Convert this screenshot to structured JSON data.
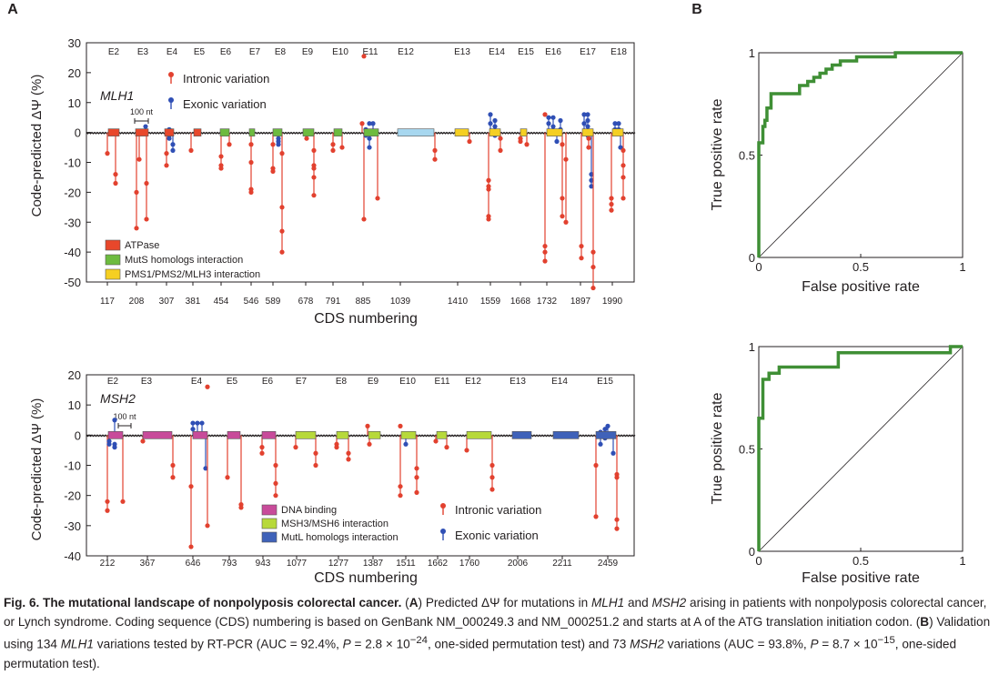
{
  "panels": {
    "a": "A",
    "b": "B"
  },
  "caption": {
    "lead": "Fig. 6. The mutational landscape of nonpolyposis colorectal cancer.",
    "p1": " (",
    "a": "A",
    "p2": ") Predicted ΔΨ for mutations in ",
    "g1": "MLH1",
    "p3": " and ",
    "g2": "MSH2",
    "p4": " arising in patients with nonpolyposis colorectal cancer, or Lynch syndrome. Coding sequence (CDS) numbering is based on GenBank NM_000249.3 and NM_000251.2 and starts at A of the ATG translation initiation codon. (",
    "b": "B",
    "p5": ") Validation using 134 ",
    "g3": "MLH1",
    "p6": " variations tested by RT-PCR (AUC = 92.4%, ",
    "pv1": "P",
    "p7": " = 2.8 × 10",
    "e1": "−24",
    "p8": ", one-sided permutation test) and 73 ",
    "g4": "MSH2",
    "p9": " variations (AUC = 93.8%, ",
    "pv2": "P",
    "p10": " = 8.7 × 10",
    "e2": "−15",
    "p11": ", one-sided permutation test)."
  },
  "colors": {
    "intronic": "#e2412f",
    "exonic": "#2f4fb5",
    "atpase": "#e8472b",
    "muts": "#6dbb3f",
    "pms": "#f5cf22",
    "dna": "#c84b9a",
    "msh3": "#b7d93a",
    "mutl": "#3f62b9",
    "plain_exon": "#a7d7ef",
    "roc": "#3f8f35"
  },
  "chart_data": [
    {
      "id": "mlh1",
      "type": "scatter",
      "gene": "MLH1",
      "ylabel": "Code-predicted ΔΨ (%)",
      "xlabel": "CDS numbering",
      "ylim": [
        -50,
        30
      ],
      "yticks": [
        30,
        20,
        10,
        0,
        -10,
        -20,
        -30,
        -40,
        -50
      ],
      "scale_bar": "100 nt",
      "exon_labels": [
        "E2",
        "E3",
        "E4",
        "E5",
        "E6",
        "E7",
        "E8",
        "E9",
        "E10",
        "E11",
        "E12",
        "E13",
        "E14",
        "E15",
        "E16",
        "E17",
        "E18"
      ],
      "cds_ticks": [
        "117",
        "208",
        "307",
        "381",
        "454",
        "546",
        "589",
        "678",
        "791",
        "885",
        "1039",
        "1410",
        "1559",
        "1668",
        "1732",
        "1897",
        "1990"
      ],
      "legend_variations": [
        "Intronic variation",
        "Exonic variation"
      ],
      "legend_domains": [
        "ATPase",
        "MutS homologs interaction",
        "PMS1/PMS2/MLH3 interaction"
      ],
      "exons": [
        {
          "x0": 119,
          "x1": 131,
          "d": "atpase"
        },
        {
          "x0": 149,
          "x1": 163,
          "d": "atpase"
        },
        {
          "x0": 181,
          "x1": 191,
          "d": "atpase"
        },
        {
          "x0": 213,
          "x1": 221,
          "d": "atpase"
        },
        {
          "x0": 242,
          "x1": 252,
          "d": "muts"
        },
        {
          "x0": 274,
          "x1": 280,
          "d": "muts"
        },
        {
          "x0": 300,
          "x1": 310,
          "d": "muts"
        },
        {
          "x0": 333,
          "x1": 345,
          "d": "muts"
        },
        {
          "x0": 367,
          "x1": 376,
          "d": "muts"
        },
        {
          "x0": 400,
          "x1": 416,
          "d": "muts"
        },
        {
          "x0": 437,
          "x1": 477,
          "d": "plain_exon"
        },
        {
          "x0": 500,
          "x1": 515,
          "d": "pms"
        },
        {
          "x0": 538,
          "x1": 550,
          "d": "pms"
        },
        {
          "x0": 572,
          "x1": 579,
          "d": "pms"
        },
        {
          "x0": 601,
          "x1": 618,
          "d": "pms"
        },
        {
          "x0": 640,
          "x1": 652,
          "d": "pms"
        },
        {
          "x0": 673,
          "x1": 685,
          "d": "pms"
        }
      ],
      "stems": [
        {
          "x": 118,
          "v": [
            -7
          ],
          "t": "i"
        },
        {
          "x": 127,
          "v": [
            -14,
            -17
          ],
          "t": "i"
        },
        {
          "x": 150,
          "v": [
            -20,
            -32
          ],
          "t": "i"
        },
        {
          "x": 153,
          "v": [
            -9
          ],
          "t": "i"
        },
        {
          "x": 161,
          "v": [
            -17,
            -29
          ],
          "t": "i"
        },
        {
          "x": 160,
          "v": [
            2
          ],
          "t": "e"
        },
        {
          "x": 183,
          "v": [
            -7,
            -11
          ],
          "t": "i"
        },
        {
          "x": 186,
          "v": [
            1,
            -1,
            -2
          ],
          "t": "e"
        },
        {
          "x": 190,
          "v": [
            -4,
            -6
          ],
          "t": "e"
        },
        {
          "x": 210,
          "v": [
            -6
          ],
          "t": "i"
        },
        {
          "x": 243,
          "v": [
            -8,
            -11,
            -12
          ],
          "t": "i"
        },
        {
          "x": 252,
          "v": [
            -4
          ],
          "t": "i"
        },
        {
          "x": 276,
          "v": [
            -4,
            -10,
            -19,
            -20
          ],
          "t": "i"
        },
        {
          "x": 300,
          "v": [
            -4,
            -12,
            -13
          ],
          "t": "i"
        },
        {
          "x": 306,
          "v": [
            -2,
            -3,
            -4
          ],
          "t": "e"
        },
        {
          "x": 310,
          "v": [
            -7,
            -25,
            -33,
            -40
          ],
          "t": "i"
        },
        {
          "x": 337,
          "v": [
            -2
          ],
          "t": "i"
        },
        {
          "x": 345,
          "v": [
            -6,
            -11,
            -12,
            -15,
            -21
          ],
          "t": "i"
        },
        {
          "x": 366,
          "v": [
            -4,
            -6
          ],
          "t": "i"
        },
        {
          "x": 376,
          "v": [
            -5
          ],
          "t": "i"
        },
        {
          "x": 398,
          "v": [
            3
          ],
          "t": "i"
        },
        {
          "x": 400,
          "v": [
            25.5,
            -29
          ],
          "t": "i"
        },
        {
          "x": 402,
          "v": [
            1,
            -1
          ],
          "t": "e"
        },
        {
          "x": 406,
          "v": [
            3,
            -2,
            -5
          ],
          "t": "e"
        },
        {
          "x": 410,
          "v": [
            3
          ],
          "t": "e"
        },
        {
          "x": 415,
          "v": [
            -22
          ],
          "t": "i"
        },
        {
          "x": 478,
          "v": [
            -6,
            -9
          ],
          "t": "i"
        },
        {
          "x": 516,
          "v": [
            -3
          ],
          "t": "i"
        },
        {
          "x": 537,
          "v": [
            -16,
            -18,
            -19,
            -28,
            -29
          ],
          "t": "i"
        },
        {
          "x": 539,
          "v": [
            6,
            3
          ],
          "t": "e"
        },
        {
          "x": 544,
          "v": [
            4,
            2,
            -1
          ],
          "t": "e"
        },
        {
          "x": 550,
          "v": [
            -2,
            -6
          ],
          "t": "i"
        },
        {
          "x": 572,
          "v": [
            -2,
            -3
          ],
          "t": "i"
        },
        {
          "x": 579,
          "v": [
            -4
          ],
          "t": "i"
        },
        {
          "x": 599,
          "v": [
            6,
            -38,
            -40,
            -43
          ],
          "t": "i"
        },
        {
          "x": 603,
          "v": [
            5,
            3
          ],
          "t": "e"
        },
        {
          "x": 608,
          "v": [
            5,
            2
          ],
          "t": "e"
        },
        {
          "x": 612,
          "v": [
            -3
          ],
          "t": "e"
        },
        {
          "x": 618,
          "v": [
            -4,
            -22,
            -28
          ],
          "t": "i"
        },
        {
          "x": 622,
          "v": [
            -9,
            -30
          ],
          "t": "i"
        },
        {
          "x": 616,
          "v": [
            4,
            1
          ],
          "t": "e"
        },
        {
          "x": 642,
          "v": [
            6,
            3
          ],
          "t": "e"
        },
        {
          "x": 646,
          "v": [
            6,
            4,
            2,
            -1
          ],
          "t": "e"
        },
        {
          "x": 639,
          "v": [
            -38,
            -42
          ],
          "t": "i"
        },
        {
          "x": 650,
          "v": [
            -14,
            -16,
            -18
          ],
          "t": "e"
        },
        {
          "x": 652,
          "v": [
            -40,
            -45,
            -52
          ],
          "t": "i"
        },
        {
          "x": 647,
          "v": [
            -2,
            -5
          ],
          "t": "i"
        },
        {
          "x": 672,
          "v": [
            -22,
            -24,
            -26
          ],
          "t": "i"
        },
        {
          "x": 676,
          "v": [
            3,
            1
          ],
          "t": "e"
        },
        {
          "x": 680,
          "v": [
            3,
            1
          ],
          "t": "e"
        },
        {
          "x": 682,
          "v": [
            -5
          ],
          "t": "e"
        },
        {
          "x": 685,
          "v": [
            -6,
            -11,
            -15,
            -22
          ],
          "t": "i"
        }
      ]
    },
    {
      "id": "msh2",
      "type": "scatter",
      "gene": "MSH2",
      "ylabel": "Code-predicted ΔΨ (%)",
      "xlabel": "CDS numbering",
      "ylim": [
        -40,
        20
      ],
      "yticks": [
        20,
        10,
        0,
        -10,
        -20,
        -30,
        -40
      ],
      "scale_bar": "100 nt",
      "exon_labels": [
        "E2",
        "E3",
        "E4",
        "E5",
        "E6",
        "E7",
        "E8",
        "E9",
        "E10",
        "E11",
        "E12",
        "E13",
        "E14",
        "E15"
      ],
      "cds_ticks": [
        "212",
        "367",
        "646",
        "793",
        "943",
        "1077",
        "1277",
        "1387",
        "1511",
        "1662",
        "1760",
        "2006",
        "2211",
        "2459"
      ],
      "legend_domains": [
        "DNA binding",
        "MSH3/MSH6 interaction",
        "MutL homologs interaction"
      ],
      "legend_variations": [
        "Intronic variation",
        "Exonic variation"
      ],
      "exons": [
        {
          "x0": 119,
          "x1": 135,
          "d": "dna"
        },
        {
          "x0": 157,
          "x1": 189,
          "d": "dna"
        },
        {
          "x0": 212,
          "x1": 228,
          "d": "dna"
        },
        {
          "x0": 250,
          "x1": 264,
          "d": "dna"
        },
        {
          "x0": 288,
          "x1": 303,
          "d": "dna"
        },
        {
          "x0": 325,
          "x1": 347,
          "d": "msh3"
        },
        {
          "x0": 370,
          "x1": 383,
          "d": "msh3"
        },
        {
          "x0": 405,
          "x1": 418,
          "d": "msh3"
        },
        {
          "x0": 441,
          "x1": 457,
          "d": "msh3"
        },
        {
          "x0": 480,
          "x1": 491,
          "d": "msh3"
        },
        {
          "x0": 513,
          "x1": 540,
          "d": "msh3"
        },
        {
          "x0": 563,
          "x1": 584,
          "d": "mutl"
        },
        {
          "x0": 608,
          "x1": 636,
          "d": "mutl"
        },
        {
          "x0": 655,
          "x1": 677,
          "d": "mutl"
        }
      ],
      "stems": [
        {
          "x": 118,
          "v": [
            -22,
            -25
          ],
          "t": "i"
        },
        {
          "x": 120,
          "v": [
            -2,
            -3
          ],
          "t": "e"
        },
        {
          "x": 126,
          "v": [
            5,
            -3,
            -4
          ],
          "t": "e"
        },
        {
          "x": 135,
          "v": [
            -22
          ],
          "t": "i"
        },
        {
          "x": 157,
          "v": [
            -2
          ],
          "t": "i"
        },
        {
          "x": 190,
          "v": [
            -10,
            -14
          ],
          "t": "i"
        },
        {
          "x": 210,
          "v": [
            -17,
            -37
          ],
          "t": "i"
        },
        {
          "x": 212,
          "v": [
            4,
            2
          ],
          "t": "e"
        },
        {
          "x": 217,
          "v": [
            4
          ],
          "t": "e"
        },
        {
          "x": 222,
          "v": [
            4
          ],
          "t": "e"
        },
        {
          "x": 226,
          "v": [
            -11
          ],
          "t": "e"
        },
        {
          "x": 228,
          "v": [
            16,
            -30
          ],
          "t": "i"
        },
        {
          "x": 250,
          "v": [
            -14
          ],
          "t": "i"
        },
        {
          "x": 265,
          "v": [
            -23,
            -24
          ],
          "t": "i"
        },
        {
          "x": 288,
          "v": [
            -4,
            -6
          ],
          "t": "i"
        },
        {
          "x": 303,
          "v": [
            -10,
            -16,
            -20
          ],
          "t": "i"
        },
        {
          "x": 325,
          "v": [
            -4
          ],
          "t": "i"
        },
        {
          "x": 347,
          "v": [
            -6,
            -10
          ],
          "t": "i"
        },
        {
          "x": 370,
          "v": [
            -3,
            -4
          ],
          "t": "i"
        },
        {
          "x": 383,
          "v": [
            -6,
            -8
          ],
          "t": "i"
        },
        {
          "x": 404,
          "v": [
            3
          ],
          "t": "i"
        },
        {
          "x": 406,
          "v": [
            -3
          ],
          "t": "i"
        },
        {
          "x": 440,
          "v": [
            3,
            -17,
            -20
          ],
          "t": "i"
        },
        {
          "x": 446,
          "v": [
            -3
          ],
          "t": "e"
        },
        {
          "x": 458,
          "v": [
            -11,
            -14,
            -19
          ],
          "t": "i"
        },
        {
          "x": 479,
          "v": [
            -2
          ],
          "t": "i"
        },
        {
          "x": 491,
          "v": [
            -4
          ],
          "t": "i"
        },
        {
          "x": 513,
          "v": [
            -5
          ],
          "t": "i"
        },
        {
          "x": 541,
          "v": [
            -10,
            -14,
            -18
          ],
          "t": "i"
        },
        {
          "x": 655,
          "v": [
            -10,
            -27
          ],
          "t": "i"
        },
        {
          "x": 660,
          "v": [
            1,
            -3
          ],
          "t": "e"
        },
        {
          "x": 665,
          "v": [
            2,
            -1
          ],
          "t": "e"
        },
        {
          "x": 668,
          "v": [
            3
          ],
          "t": "e"
        },
        {
          "x": 674,
          "v": [
            -6
          ],
          "t": "e"
        },
        {
          "x": 678,
          "v": [
            -13,
            -14,
            -28,
            -31
          ],
          "t": "i"
        }
      ]
    },
    {
      "id": "roc_mlh1",
      "type": "line",
      "xlabel": "False positive rate",
      "ylabel": "True positive rate",
      "xlim": [
        0,
        1
      ],
      "ylim": [
        0,
        1
      ],
      "xticks": [
        "0",
        "0.5",
        "1"
      ],
      "yticks": [
        "0",
        "0.5",
        "1"
      ],
      "x": [
        0,
        0,
        0.02,
        0.02,
        0.03,
        0.03,
        0.04,
        0.04,
        0.06,
        0.06,
        0.2,
        0.2,
        0.24,
        0.24,
        0.27,
        0.27,
        0.3,
        0.3,
        0.33,
        0.33,
        0.36,
        0.36,
        0.4,
        0.4,
        0.48,
        0.48,
        0.67,
        0.67,
        1.0
      ],
      "y": [
        0,
        0.56,
        0.56,
        0.64,
        0.64,
        0.67,
        0.67,
        0.73,
        0.73,
        0.8,
        0.8,
        0.84,
        0.84,
        0.86,
        0.86,
        0.88,
        0.88,
        0.9,
        0.9,
        0.92,
        0.92,
        0.94,
        0.94,
        0.96,
        0.96,
        0.98,
        0.98,
        1.0,
        1.0
      ]
    },
    {
      "id": "roc_msh2",
      "type": "line",
      "xlabel": "False positive rate",
      "ylabel": "True positive rate",
      "xlim": [
        0,
        1
      ],
      "ylim": [
        0,
        1
      ],
      "xticks": [
        "0",
        "0.5",
        "1"
      ],
      "yticks": [
        "0",
        "0.5",
        "1"
      ],
      "x": [
        0,
        0,
        0.02,
        0.02,
        0.05,
        0.05,
        0.1,
        0.1,
        0.39,
        0.39,
        0.94,
        0.94,
        1.0
      ],
      "y": [
        0,
        0.65,
        0.65,
        0.84,
        0.84,
        0.87,
        0.87,
        0.9,
        0.9,
        0.97,
        0.97,
        1.0,
        1.0
      ]
    }
  ]
}
